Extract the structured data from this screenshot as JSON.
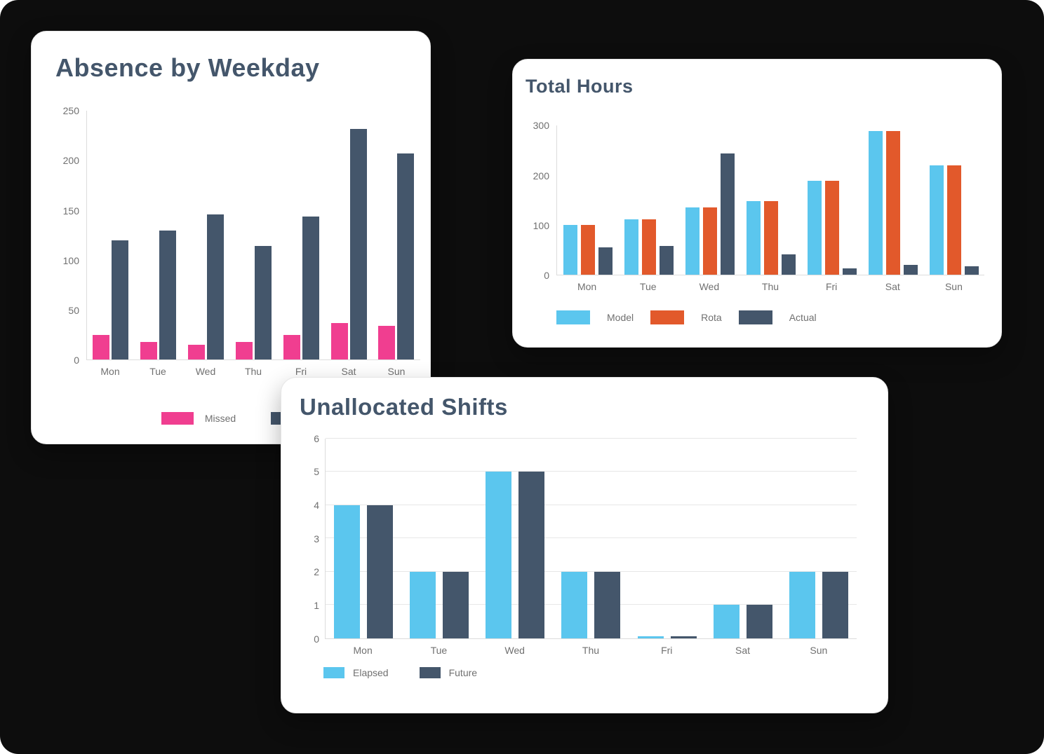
{
  "background_color": "#0d0d0d",
  "card_color": "#ffffff",
  "title_color": "#44566b",
  "axis_text_color": "#707070",
  "charts": [
    {
      "title": "Absence by Weekday",
      "chart_data": {
        "type": "bar",
        "categories": [
          "Mon",
          "Tue",
          "Wed",
          "Thu",
          "Fri",
          "Sat",
          "Sun"
        ],
        "series": [
          {
            "name": "Missed",
            "color": "#f03e90",
            "values": [
              25,
              18,
              15,
              18,
              25,
              37,
              34
            ]
          },
          {
            "name": "",
            "color": "#44566b",
            "values": [
              120,
              130,
              146,
              114,
              144,
              232,
              207
            ]
          }
        ],
        "ylim": [
          0,
          250
        ],
        "yticks": [
          0,
          50,
          100,
          150,
          200,
          250
        ],
        "grid": false,
        "legend_position": "bottom-center"
      }
    },
    {
      "title": "Total Hours",
      "chart_data": {
        "type": "bar",
        "categories": [
          "Mon",
          "Tue",
          "Wed",
          "Thu",
          "Fri",
          "Sat",
          "Sun"
        ],
        "series": [
          {
            "name": "Model",
            "color": "#5bc6ee",
            "values": [
              101,
              112,
              136,
              149,
              189,
              290,
              220
            ]
          },
          {
            "name": "Rota",
            "color": "#e2592b",
            "values": [
              101,
              112,
              136,
              149,
              189,
              290,
              220
            ]
          },
          {
            "name": "Actual",
            "color": "#44566b",
            "values": [
              55,
              59,
              244,
              42,
              13,
              20,
              18
            ]
          }
        ],
        "ylim": [
          0,
          300
        ],
        "yticks": [
          0,
          100,
          200,
          300
        ],
        "grid": false,
        "legend_position": "bottom-left"
      }
    },
    {
      "title": "Unallocated Shifts",
      "chart_data": {
        "type": "bar",
        "categories": [
          "Mon",
          "Tue",
          "Wed",
          "Thu",
          "Fri",
          "Sat",
          "Sun"
        ],
        "series": [
          {
            "name": "Elapsed",
            "color": "#5bc6ee",
            "values": [
              4,
              2,
              5,
              2,
              0.05,
              1,
              2
            ]
          },
          {
            "name": "Future",
            "color": "#44566b",
            "values": [
              4,
              2,
              5,
              2,
              0.05,
              1,
              2
            ]
          }
        ],
        "ylim": [
          0,
          6
        ],
        "yticks": [
          0,
          1,
          2,
          3,
          4,
          5,
          6
        ],
        "grid": true,
        "legend_position": "bottom-left"
      }
    }
  ]
}
